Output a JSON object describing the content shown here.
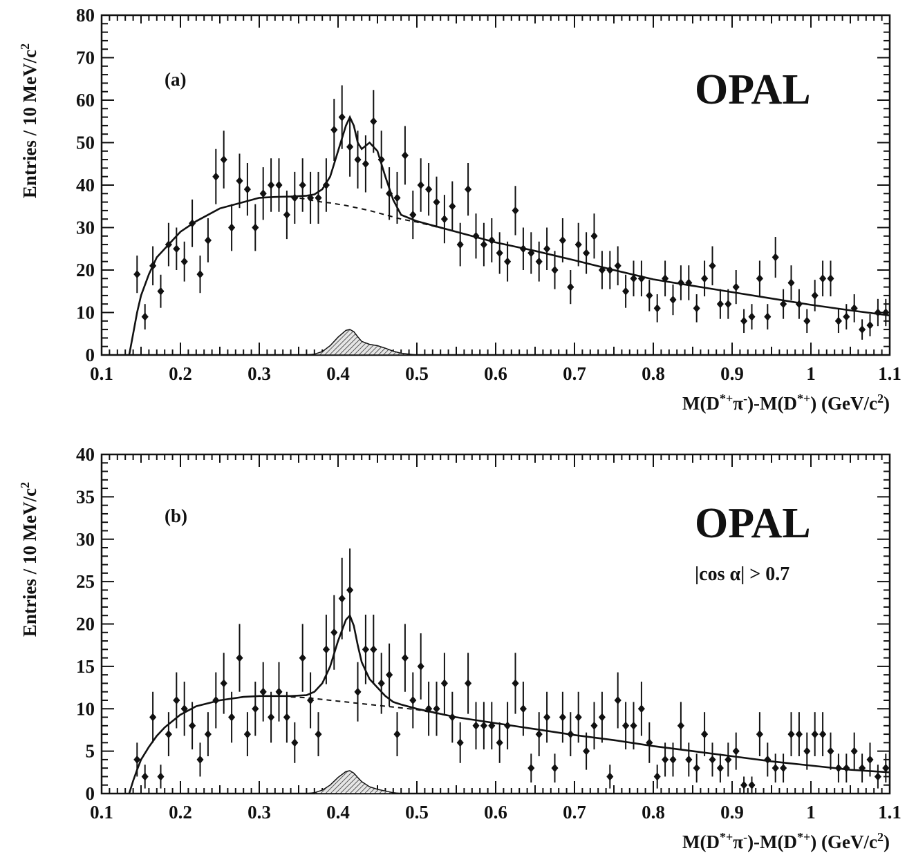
{
  "chart_data": [
    {
      "type": "scatter",
      "panel_label": "(a)",
      "brand": "OPAL",
      "annotation": "",
      "xlabel": "M(D*+π-)-M(D*+)  (GeV/c²)",
      "ylabel": "Entries / 10 MeV/c²",
      "xlim": [
        0.1,
        1.1
      ],
      "ylim": [
        0,
        80
      ],
      "x_ticks": [
        "0.1",
        "0.2",
        "0.3",
        "0.4",
        "0.5",
        "0.6",
        "0.7",
        "0.8",
        "0.9",
        "1",
        "1.1"
      ],
      "y_ticks": [
        "0",
        "10",
        "20",
        "30",
        "40",
        "50",
        "60",
        "70",
        "80"
      ],
      "points": {
        "x": [
          0.145,
          0.155,
          0.165,
          0.175,
          0.185,
          0.195,
          0.205,
          0.215,
          0.225,
          0.235,
          0.245,
          0.255,
          0.265,
          0.275,
          0.285,
          0.295,
          0.305,
          0.315,
          0.325,
          0.335,
          0.345,
          0.355,
          0.365,
          0.375,
          0.385,
          0.395,
          0.405,
          0.415,
          0.425,
          0.435,
          0.445,
          0.455,
          0.465,
          0.475,
          0.485,
          0.495,
          0.505,
          0.515,
          0.525,
          0.535,
          0.545,
          0.555,
          0.565,
          0.575,
          0.585,
          0.595,
          0.605,
          0.615,
          0.625,
          0.635,
          0.645,
          0.655,
          0.665,
          0.675,
          0.685,
          0.695,
          0.705,
          0.715,
          0.725,
          0.735,
          0.745,
          0.755,
          0.765,
          0.775,
          0.785,
          0.795,
          0.805,
          0.815,
          0.825,
          0.835,
          0.845,
          0.855,
          0.865,
          0.875,
          0.885,
          0.895,
          0.905,
          0.915,
          0.925,
          0.935,
          0.945,
          0.955,
          0.965,
          0.975,
          0.985,
          0.995,
          1.005,
          1.015,
          1.025,
          1.035,
          1.045,
          1.055,
          1.065,
          1.075,
          1.085,
          1.095
        ],
        "y": [
          19,
          9,
          21,
          15,
          26,
          25,
          22,
          31,
          19,
          27,
          42,
          46,
          30,
          41,
          39,
          30,
          38,
          40,
          40,
          33,
          37,
          40,
          37,
          37,
          40,
          53,
          56,
          49,
          46,
          45,
          55,
          46,
          38,
          37,
          47,
          33,
          40,
          39,
          36,
          32,
          35,
          26,
          39,
          28,
          26,
          27,
          24,
          22,
          34,
          25,
          24,
          22,
          25,
          20,
          27,
          16,
          26,
          24,
          28,
          20,
          20,
          21,
          15,
          18,
          18,
          14,
          11,
          18,
          13,
          17,
          17,
          11,
          18,
          21,
          12,
          12,
          16,
          8,
          9,
          18,
          9,
          23,
          12,
          17,
          12,
          8,
          14,
          18,
          18,
          8,
          9,
          11,
          6,
          7,
          10,
          10
        ]
      },
      "errors": [
        4.4,
        3,
        4.6,
        3.9,
        5.1,
        5,
        4.7,
        5.6,
        4.4,
        5.2,
        6.5,
        6.8,
        5.5,
        6.4,
        6.2,
        5.5,
        6.2,
        6.3,
        6.3,
        5.7,
        6.1,
        6.3,
        6.1,
        6.1,
        6.3,
        7.3,
        7.5,
        7,
        6.8,
        6.7,
        7.4,
        6.8,
        6.2,
        6.1,
        6.9,
        5.7,
        6.3,
        6.2,
        6,
        5.7,
        5.9,
        5.1,
        6.2,
        5.3,
        5.1,
        5.2,
        4.9,
        4.7,
        5.8,
        5,
        4.9,
        4.7,
        5,
        4.5,
        5.2,
        4,
        5.1,
        4.9,
        5.3,
        4.5,
        4.5,
        4.6,
        3.9,
        4.2,
        4.2,
        3.7,
        3.3,
        4.2,
        3.6,
        4.1,
        4.1,
        3.3,
        4.2,
        4.6,
        3.5,
        3.5,
        4,
        2.8,
        3,
        4.2,
        3,
        4.8,
        3.5,
        4.1,
        3.5,
        2.8,
        3.7,
        4.2,
        4.2,
        2.8,
        3,
        3.3,
        2.4,
        2.6,
        3.2,
        3.2
      ],
      "curves": {
        "x": [
          0.135,
          0.14,
          0.145,
          0.15,
          0.16,
          0.17,
          0.18,
          0.2,
          0.22,
          0.25,
          0.28,
          0.3,
          0.32,
          0.34,
          0.36,
          0.37,
          0.38,
          0.39,
          0.4,
          0.41,
          0.415,
          0.42,
          0.425,
          0.43,
          0.44,
          0.45,
          0.46,
          0.47,
          0.48,
          0.5,
          0.55,
          0.6,
          0.65,
          0.7,
          0.75,
          0.8,
          0.85,
          0.9,
          0.95,
          1.0,
          1.05,
          1.1
        ],
        "fit": [
          0,
          5,
          10,
          14,
          19,
          23,
          25,
          29,
          31.5,
          34.5,
          36,
          37,
          37.2,
          37.3,
          37.5,
          37.8,
          39,
          42,
          48,
          54,
          56,
          54,
          50,
          48.5,
          50,
          48,
          42,
          36.5,
          33,
          31.5,
          29,
          26.5,
          24.5,
          22.3,
          20,
          17.8,
          16.3,
          14.8,
          13.3,
          11.8,
          10.5,
          9.3
        ],
        "background": [
          0,
          5,
          10,
          14,
          19,
          23,
          25,
          29,
          31.5,
          34.5,
          36,
          37,
          37.2,
          37.2,
          36.7,
          36.3,
          36,
          35.8,
          35.5,
          35.2,
          35,
          34.8,
          34.6,
          34.4,
          34,
          33.5,
          33,
          32.5,
          32,
          31.3,
          29,
          26.5,
          24.5,
          22.3,
          20,
          17.8,
          16.3,
          14.8,
          13.3,
          11.8,
          10.5,
          9.3
        ],
        "signal": [
          0,
          0,
          0,
          0,
          0,
          0,
          0,
          0,
          0,
          0,
          0,
          0,
          0,
          0,
          0,
          0.2,
          0.8,
          2.2,
          4.2,
          5.8,
          6,
          5.5,
          4.3,
          3.2,
          2.5,
          2.2,
          1.6,
          0.9,
          0.4,
          0,
          0,
          0,
          0,
          0,
          0,
          0,
          0,
          0,
          0,
          0,
          0,
          0
        ]
      }
    },
    {
      "type": "scatter",
      "panel_label": "(b)",
      "brand": "OPAL",
      "annotation": "|cos α| > 0.7",
      "xlabel": "M(D*+π-)-M(D*+)  (GeV/c²)",
      "ylabel": "Entries / 10 MeV/c²",
      "xlim": [
        0.1,
        1.1
      ],
      "ylim": [
        0,
        40
      ],
      "x_ticks": [
        "0.1",
        "0.2",
        "0.3",
        "0.4",
        "0.5",
        "0.6",
        "0.7",
        "0.8",
        "0.9",
        "1",
        "1.1"
      ],
      "y_ticks": [
        "0",
        "5",
        "10",
        "15",
        "20",
        "25",
        "30",
        "35",
        "40"
      ],
      "points": {
        "x": [
          0.145,
          0.155,
          0.165,
          0.175,
          0.185,
          0.195,
          0.205,
          0.215,
          0.225,
          0.235,
          0.245,
          0.255,
          0.265,
          0.275,
          0.285,
          0.295,
          0.305,
          0.315,
          0.325,
          0.335,
          0.345,
          0.355,
          0.365,
          0.375,
          0.385,
          0.395,
          0.405,
          0.415,
          0.425,
          0.435,
          0.445,
          0.455,
          0.465,
          0.475,
          0.485,
          0.495,
          0.505,
          0.515,
          0.525,
          0.535,
          0.545,
          0.555,
          0.565,
          0.575,
          0.585,
          0.595,
          0.605,
          0.615,
          0.625,
          0.635,
          0.645,
          0.655,
          0.665,
          0.675,
          0.685,
          0.695,
          0.705,
          0.715,
          0.725,
          0.735,
          0.745,
          0.755,
          0.765,
          0.775,
          0.785,
          0.795,
          0.805,
          0.815,
          0.825,
          0.835,
          0.845,
          0.855,
          0.865,
          0.875,
          0.885,
          0.895,
          0.905,
          0.915,
          0.925,
          0.935,
          0.945,
          0.955,
          0.965,
          0.975,
          0.985,
          0.995,
          1.005,
          1.015,
          1.025,
          1.035,
          1.045,
          1.055,
          1.065,
          1.075,
          1.085,
          1.095
        ],
        "y": [
          4,
          2,
          9,
          2,
          7,
          11,
          10,
          8,
          4,
          7,
          11,
          13,
          9,
          16,
          7,
          10,
          12,
          9,
          12,
          9,
          6,
          16,
          11,
          7,
          17,
          19,
          23,
          24,
          12,
          17,
          17,
          13,
          14,
          7,
          16,
          11,
          15,
          10,
          10,
          13,
          9,
          6,
          13,
          8,
          8,
          8,
          6,
          8,
          13,
          10,
          3,
          7,
          9,
          3,
          9,
          7,
          9,
          5,
          8,
          9,
          2,
          11,
          8,
          8,
          10,
          6,
          2,
          4,
          4,
          8,
          4,
          3,
          7,
          4,
          3,
          4,
          5,
          1,
          1,
          7,
          4,
          3,
          3,
          7,
          7,
          5,
          7,
          7,
          5,
          3,
          3,
          5,
          3,
          4,
          2,
          3
        ],
        "errors": [
          2,
          1.4,
          3,
          1.4,
          2.6,
          3.3,
          3.2,
          2.8,
          2,
          2.6,
          3.3,
          3.6,
          3,
          4,
          2.6,
          3.2,
          3.5,
          3,
          3.5,
          3,
          2.4,
          4,
          3.3,
          2.6,
          4.1,
          4.4,
          4.8,
          4.9,
          3.5,
          4.1,
          4.1,
          3.6,
          3.7,
          2.6,
          4,
          3.3,
          3.9,
          3.2,
          3.2,
          3.6,
          3,
          2.4,
          3.6,
          2.8,
          2.8,
          2.8,
          2.4,
          2.8,
          3.6,
          3.2,
          1.7,
          2.6,
          3,
          1.7,
          3,
          2.6,
          3,
          2.2,
          2.8,
          3,
          1.4,
          3.3,
          2.8,
          2.8,
          3.2,
          2.4,
          1.4,
          2,
          2,
          2.8,
          2,
          1.7,
          2.6,
          2,
          1.7,
          2,
          2.2,
          1,
          1,
          2.6,
          2,
          1.7,
          1.7,
          2.6,
          2.6,
          2.2,
          2.6,
          2.6,
          2.2,
          1.7,
          1.7,
          2.2,
          1.7,
          2,
          1.4,
          1.7
        ]
      },
      "curves": {
        "x": [
          0.135,
          0.14,
          0.145,
          0.15,
          0.16,
          0.17,
          0.18,
          0.2,
          0.22,
          0.25,
          0.28,
          0.3,
          0.32,
          0.34,
          0.36,
          0.37,
          0.38,
          0.39,
          0.4,
          0.41,
          0.415,
          0.42,
          0.425,
          0.43,
          0.44,
          0.45,
          0.46,
          0.47,
          0.48,
          0.5,
          0.55,
          0.6,
          0.65,
          0.7,
          0.75,
          0.8,
          0.85,
          0.9,
          0.95,
          1.0,
          1.05,
          1.1
        ],
        "fit": [
          0,
          1.5,
          2.8,
          4,
          5.5,
          6.8,
          7.8,
          9.3,
          10.3,
          11,
          11.4,
          11.5,
          11.5,
          11.5,
          11.6,
          12,
          13,
          15,
          18,
          20.5,
          21,
          19.8,
          17.5,
          15.5,
          13.5,
          12.5,
          11.5,
          10.8,
          10.5,
          10,
          9,
          8.3,
          7.6,
          6.9,
          6.3,
          5.6,
          5,
          4.4,
          3.8,
          3.3,
          2.8,
          2.5
        ],
        "background": [
          0,
          1.5,
          2.8,
          4,
          5.5,
          6.8,
          7.8,
          9.3,
          10.3,
          11,
          11.4,
          11.5,
          11.5,
          11.4,
          11.3,
          11.2,
          11.1,
          11,
          10.9,
          10.8,
          10.75,
          10.7,
          10.65,
          10.6,
          10.5,
          10.4,
          10.3,
          10.2,
          10.1,
          9.9,
          9,
          8.3,
          7.6,
          6.9,
          6.3,
          5.6,
          5,
          4.4,
          3.8,
          3.3,
          2.8,
          2.5
        ],
        "signal": [
          0,
          0,
          0,
          0,
          0,
          0,
          0,
          0,
          0,
          0,
          0,
          0,
          0,
          0,
          0,
          0.1,
          0.4,
          1,
          1.9,
          2.6,
          2.7,
          2.4,
          1.9,
          1.4,
          0.8,
          0.5,
          0.3,
          0.1,
          0,
          0,
          0,
          0,
          0,
          0,
          0,
          0,
          0,
          0,
          0,
          0,
          0,
          0
        ]
      }
    }
  ]
}
